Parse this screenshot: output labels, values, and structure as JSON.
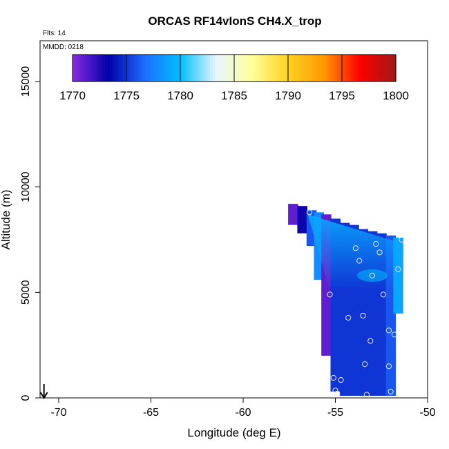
{
  "chart_data": {
    "type": "heatmap",
    "title": "ORCAS RF14vIonS CH4.X_trop",
    "annotations": {
      "flights": "Flts: 14",
      "date": "MMDD: 0218"
    },
    "xlabel": "Longitude (deg E)",
    "ylabel": "Altitude (m)",
    "xlim": [
      -71,
      -50
    ],
    "ylim": [
      0,
      16500
    ],
    "xticks": [
      -70,
      -65,
      -60,
      -55,
      -50
    ],
    "yticks": [
      0,
      5000,
      10000,
      15000
    ],
    "colorbar": {
      "range": [
        1770,
        1800
      ],
      "ticks": [
        1770,
        1775,
        1780,
        1785,
        1790,
        1795,
        1800
      ],
      "stops": [
        "#8a2be2",
        "#0000a8",
        "#1e6cff",
        "#00bfff",
        "#e8f6ff",
        "#ffff99",
        "#ffd21f",
        "#ff9900",
        "#ff0000",
        "#a01818"
      ]
    },
    "field_cells": [
      {
        "lon": -57.3,
        "alt_bottom": 8200,
        "alt_top": 9200,
        "value": 1771
      },
      {
        "lon": -56.8,
        "alt_bottom": 7800,
        "alt_top": 9100,
        "value": 1773
      },
      {
        "lon": -56.3,
        "alt_bottom": 7200,
        "alt_top": 8900,
        "value": 1776
      },
      {
        "lon": -55.9,
        "alt_bottom": 5600,
        "alt_top": 8800,
        "value": 1778
      },
      {
        "lon": -55.5,
        "alt_bottom": 2000,
        "alt_top": 8700,
        "value": 1771
      },
      {
        "lon": -55.0,
        "alt_bottom": 300,
        "alt_top": 8500,
        "value": 1775
      },
      {
        "lon": -54.5,
        "alt_bottom": 100,
        "alt_top": 8300,
        "value": 1775
      },
      {
        "lon": -54.0,
        "alt_bottom": 100,
        "alt_top": 8200,
        "value": 1775
      },
      {
        "lon": -53.5,
        "alt_bottom": 100,
        "alt_top": 8000,
        "value": 1775
      },
      {
        "lon": -53.0,
        "alt_bottom": 100,
        "alt_top": 7900,
        "value": 1775
      },
      {
        "lon": -52.5,
        "alt_bottom": 100,
        "alt_top": 7800,
        "value": 1775
      },
      {
        "lon": -52.0,
        "alt_bottom": 100,
        "alt_top": 7700,
        "value": 1776
      },
      {
        "lon": -51.6,
        "alt_bottom": 4000,
        "alt_top": 7600,
        "value": 1779
      }
    ],
    "gradient_band": {
      "lon_start": -56.5,
      "lon_end": -51.3,
      "alt_start": 8700,
      "alt_end": 7300,
      "value": 1779
    },
    "highlight_patch": {
      "lon": -53.0,
      "alt": 5800,
      "value": 1780
    },
    "flight_points": [
      {
        "lon": -56.4,
        "alt": 8800
      },
      {
        "lon": -53.9,
        "alt": 7100
      },
      {
        "lon": -52.8,
        "alt": 7300
      },
      {
        "lon": -52.6,
        "alt": 6900
      },
      {
        "lon": -51.4,
        "alt": 7500
      },
      {
        "lon": -53.7,
        "alt": 6500
      },
      {
        "lon": -51.6,
        "alt": 6100
      },
      {
        "lon": -53.0,
        "alt": 5800
      },
      {
        "lon": -55.3,
        "alt": 4900
      },
      {
        "lon": -52.4,
        "alt": 4900
      },
      {
        "lon": -53.5,
        "alt": 3900
      },
      {
        "lon": -54.3,
        "alt": 3800
      },
      {
        "lon": -52.1,
        "alt": 3200
      },
      {
        "lon": -51.8,
        "alt": 3000
      },
      {
        "lon": -53.1,
        "alt": 2700
      },
      {
        "lon": -53.4,
        "alt": 1600
      },
      {
        "lon": -52.1,
        "alt": 1500
      },
      {
        "lon": -55.1,
        "alt": 950
      },
      {
        "lon": -54.7,
        "alt": 850
      },
      {
        "lon": -55.0,
        "alt": 350
      },
      {
        "lon": -54.9,
        "alt": 200
      },
      {
        "lon": -53.3,
        "alt": 150
      },
      {
        "lon": -52.0,
        "alt": 300
      }
    ],
    "arrow_marker": {
      "lon": -70.8,
      "alt_top": 650,
      "alt_bottom": 0
    }
  }
}
